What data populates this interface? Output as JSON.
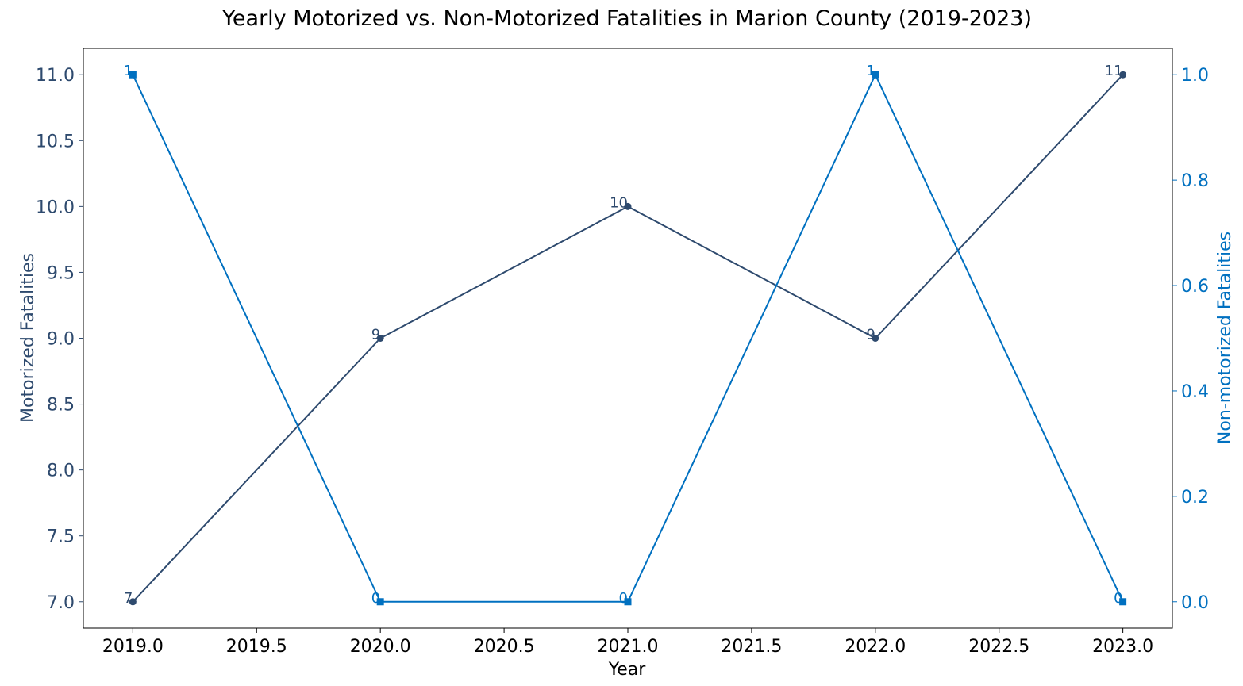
{
  "chart_data": {
    "type": "line",
    "title": "Yearly Motorized vs. Non-Motorized Fatalities in Marion County (2019-2023)",
    "xlabel": "Year",
    "ylabel": "Motorized Fatalities",
    "ylabel_right": "Non-motorized Fatalities",
    "x": [
      2019,
      2020,
      2021,
      2022,
      2023
    ],
    "xlim": [
      2018.8,
      2023.2
    ],
    "xticks": [
      "2019.0",
      "2019.5",
      "2020.0",
      "2020.5",
      "2021.0",
      "2021.5",
      "2022.0",
      "2022.5",
      "2023.0"
    ],
    "ylim_left": [
      6.8,
      11.2
    ],
    "yticks_left": [
      "7.0",
      "7.5",
      "8.0",
      "8.5",
      "9.0",
      "9.5",
      "10.0",
      "10.5",
      "11.0"
    ],
    "ylim_right": [
      -0.05,
      1.05
    ],
    "yticks_right": [
      "0.0",
      "0.2",
      "0.4",
      "0.6",
      "0.8",
      "1.0"
    ],
    "grid": false,
    "series": [
      {
        "axis": "left",
        "values": [
          7,
          9,
          10,
          9,
          11
        ],
        "labels": [
          "7",
          "9",
          "10",
          "9",
          "11"
        ],
        "marker": "circle",
        "color": "#2e4a6e"
      },
      {
        "axis": "right",
        "values": [
          1,
          0,
          0,
          1,
          0
        ],
        "labels": [
          "1",
          "0",
          "0",
          "1",
          "0"
        ],
        "marker": "square",
        "color": "#0070c0"
      }
    ],
    "colors": {
      "left_axis": "#2e4a6e",
      "right_axis": "#0070c0",
      "axis_line": "#000000"
    }
  }
}
